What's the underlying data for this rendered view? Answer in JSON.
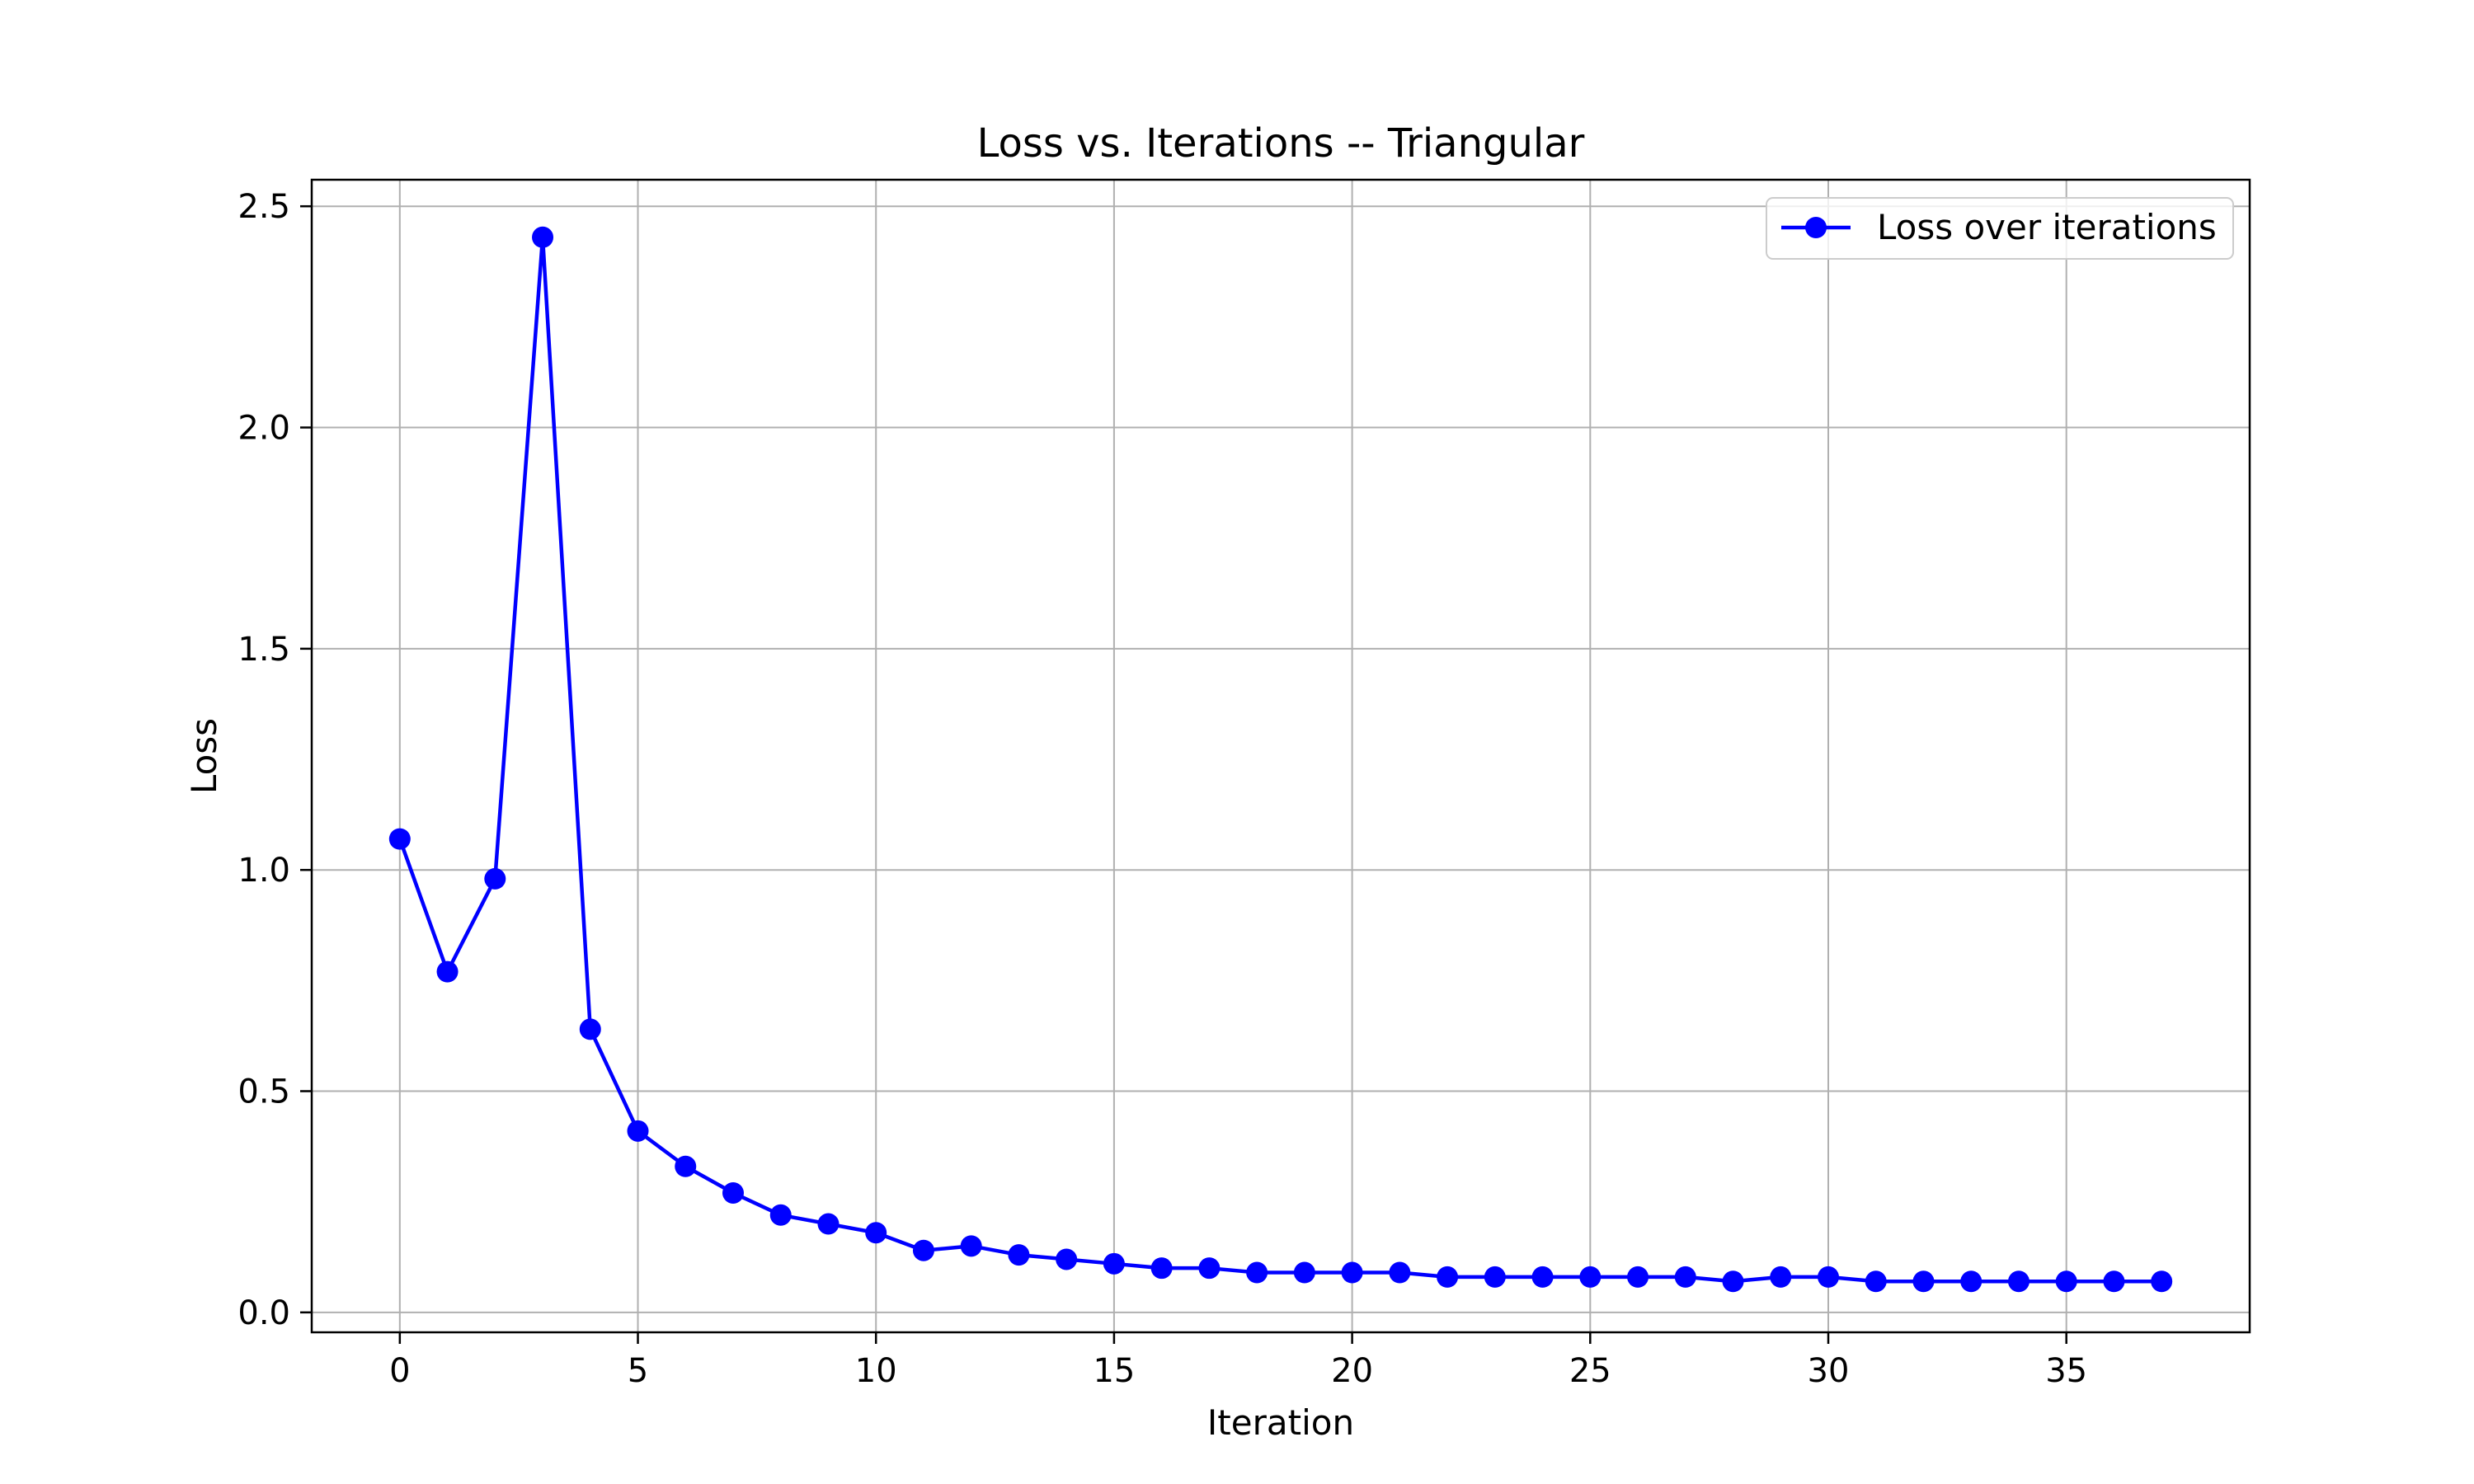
{
  "chart_data": {
    "type": "line",
    "title": "Loss vs. Iterations -- Triangular",
    "xlabel": "Iteration",
    "ylabel": "Loss",
    "xlim": [
      -1.85,
      38.85
    ],
    "ylim": [
      -0.045,
      2.56
    ],
    "xticks": [
      0,
      5,
      10,
      15,
      20,
      25,
      30,
      35
    ],
    "yticks": [
      0.0,
      0.5,
      1.0,
      1.5,
      2.0,
      2.5
    ],
    "xtick_labels": [
      "0",
      "5",
      "10",
      "15",
      "20",
      "25",
      "30",
      "35"
    ],
    "ytick_labels": [
      "0.0",
      "0.5",
      "1.0",
      "1.5",
      "2.0",
      "2.5"
    ],
    "grid": true,
    "legend": {
      "position": "top-right",
      "entries": [
        "Loss over iterations"
      ]
    },
    "series": [
      {
        "name": "Loss over iterations",
        "color": "#0000ff",
        "marker": "circle",
        "x": [
          0,
          1,
          2,
          3,
          4,
          5,
          6,
          7,
          8,
          9,
          10,
          11,
          12,
          13,
          14,
          15,
          16,
          17,
          18,
          19,
          20,
          21,
          22,
          23,
          24,
          25,
          26,
          27,
          28,
          29,
          30,
          31,
          32,
          33,
          34,
          35,
          36,
          37
        ],
        "y": [
          1.07,
          0.77,
          0.98,
          2.43,
          0.64,
          0.41,
          0.33,
          0.27,
          0.22,
          0.2,
          0.18,
          0.14,
          0.15,
          0.13,
          0.12,
          0.11,
          0.1,
          0.1,
          0.09,
          0.09,
          0.09,
          0.09,
          0.08,
          0.08,
          0.08,
          0.08,
          0.08,
          0.08,
          0.07,
          0.08,
          0.08,
          0.07,
          0.07,
          0.07,
          0.07,
          0.07,
          0.07,
          0.07
        ]
      }
    ]
  }
}
